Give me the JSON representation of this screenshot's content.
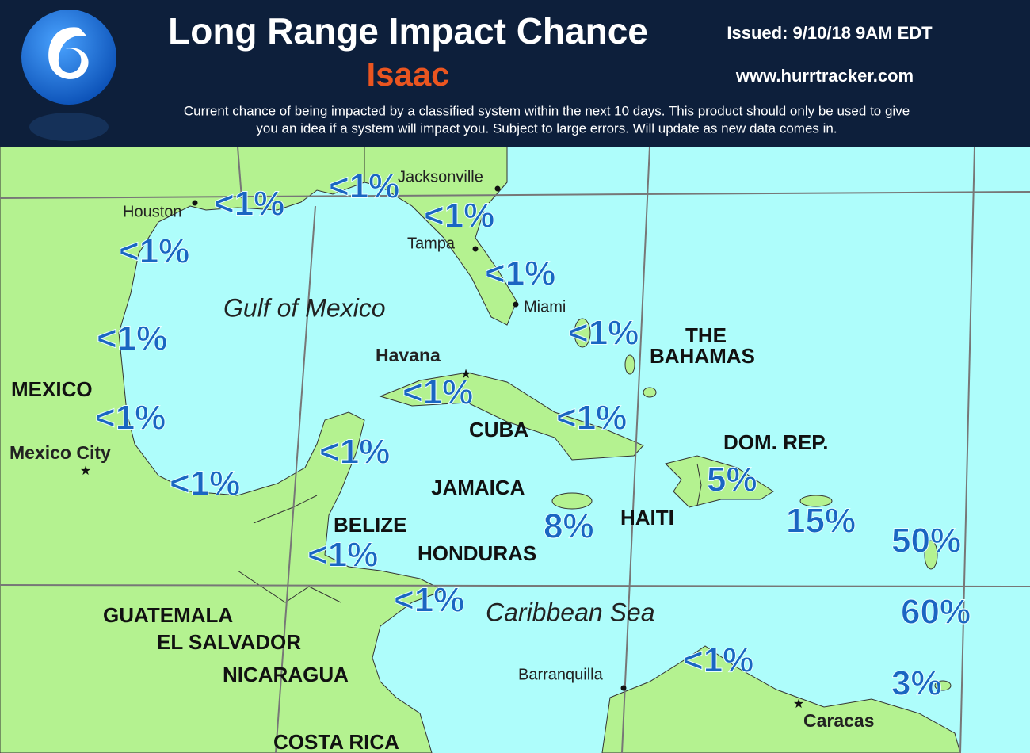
{
  "header": {
    "title": "Long Range Impact Chance",
    "storm": "Isaac",
    "issued": "Issued: 9/10/18 9AM EDT",
    "website": "www.hurrtracker.com",
    "description": [
      "Current chance of being impacted by a classified system within the next 10 days. This product should only be used to give",
      "you an idea if a system will impact you. Subject to large errors. Will update as new data comes in."
    ]
  },
  "map": {
    "water": [
      "Gulf of Mexico",
      "Caribbean Sea"
    ],
    "places": [
      "MEXICO",
      "THE",
      "BAHAMAS",
      "CUBA",
      "DOM. REP.",
      "JAMAICA",
      "HAITI",
      "BELIZE",
      "HONDURAS",
      "GUATEMALA",
      "EL SALVADOR",
      "NICARAGUA",
      "COSTA RICA"
    ],
    "cities": [
      "Houston",
      "Jacksonville",
      "Tampa",
      "Miami",
      "Havana",
      "Mexico City",
      "Barranquilla",
      "Caracas"
    ],
    "chances": [
      "<1%",
      "<1%",
      "<1%",
      "<1%",
      "<1%",
      "<1%",
      "<1%",
      "<1%",
      "<1%",
      "<1%",
      "<1%",
      "<1%",
      "5%",
      "8%",
      "15%",
      "50%",
      "<1%",
      "<1%",
      "60%",
      "<1%",
      "3%"
    ]
  }
}
